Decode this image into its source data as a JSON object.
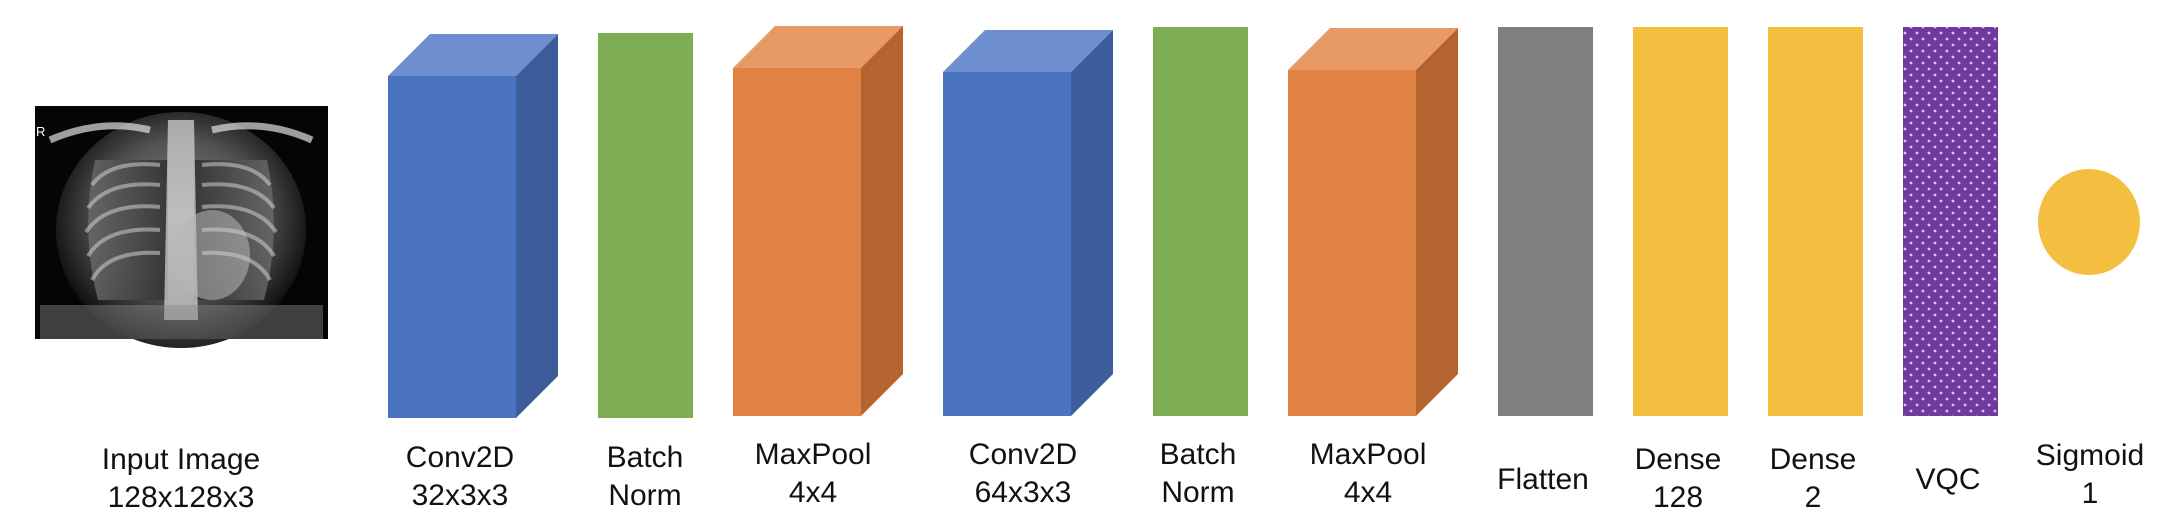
{
  "colors": {
    "conv_front": "#4a74c0",
    "conv_top": "#6d8fd0",
    "conv_side": "#3c5d99",
    "batch_norm": "#7ead55",
    "pool_front": "#e08244",
    "pool_top": "#e89a66",
    "pool_side": "#b5642f",
    "flatten": "#7f7f7f",
    "dense": "#f4be40",
    "vqc": "#7138a0",
    "vqc_dots": "#d8c4ec",
    "sigmoid": "#f4be40"
  },
  "layers": [
    {
      "id": "input",
      "shape": "xray-image",
      "line1": "Input Image",
      "line2": "128x128x3",
      "image_marker": "R"
    },
    {
      "id": "conv1",
      "shape": "box-3d-conv",
      "line1": "Conv2D",
      "line2": "32x3x3"
    },
    {
      "id": "bn1",
      "shape": "slab-green",
      "line1": "Batch",
      "line2": "Norm"
    },
    {
      "id": "pool1",
      "shape": "box-3d-pool",
      "line1": "MaxPool",
      "line2": "4x4"
    },
    {
      "id": "conv2",
      "shape": "box-3d-conv",
      "line1": "Conv2D",
      "line2": "64x3x3"
    },
    {
      "id": "bn2",
      "shape": "slab-green",
      "line1": "Batch",
      "line2": "Norm"
    },
    {
      "id": "pool2",
      "shape": "box-3d-pool",
      "line1": "MaxPool",
      "line2": "4x4"
    },
    {
      "id": "flatten",
      "shape": "slab-gray",
      "line1": "Flatten",
      "line2": ""
    },
    {
      "id": "dense1",
      "shape": "slab-yellow",
      "line1": "Dense",
      "line2": "128"
    },
    {
      "id": "dense2",
      "shape": "slab-yellow",
      "line1": "Dense",
      "line2": "2"
    },
    {
      "id": "vqc",
      "shape": "slab-dotted-purple",
      "line1": "VQC",
      "line2": ""
    },
    {
      "id": "sigmoid",
      "shape": "circle-yellow",
      "line1": "Sigmoid",
      "line2": "1"
    }
  ]
}
